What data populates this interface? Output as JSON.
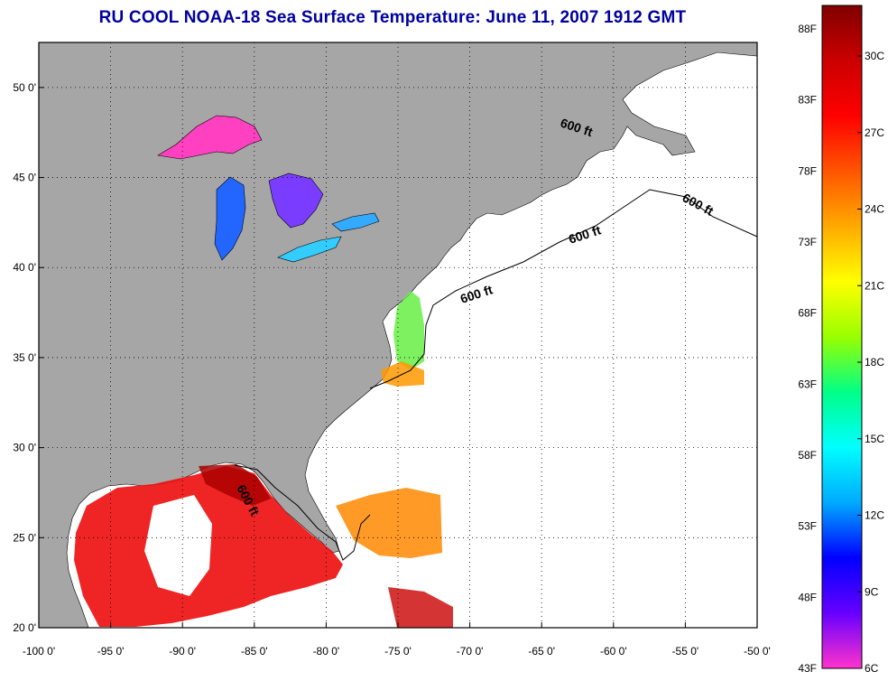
{
  "title": "RU COOL  NOAA-18  Sea Surface Temperature:  June 11, 2007 1912 GMT",
  "map": {
    "lon_range": [
      -100,
      -50
    ],
    "lat_range": [
      20,
      52.5
    ],
    "lat_ticks": [
      {
        "value": 20,
        "label": "20 0'"
      },
      {
        "value": 25,
        "label": "25 0'"
      },
      {
        "value": 30,
        "label": "30 0'"
      },
      {
        "value": 35,
        "label": "35 0'"
      },
      {
        "value": 40,
        "label": "40 0'"
      },
      {
        "value": 45,
        "label": "45 0'"
      },
      {
        "value": 50,
        "label": "50 0'"
      }
    ],
    "lon_ticks": [
      {
        "value": -100,
        "label": "-100 0'"
      },
      {
        "value": -95,
        "label": "-95 0'"
      },
      {
        "value": -90,
        "label": "-90 0'"
      },
      {
        "value": -85,
        "label": "-85 0'"
      },
      {
        "value": -80,
        "label": "-80 0'"
      },
      {
        "value": -75,
        "label": "-75 0'"
      },
      {
        "value": -70,
        "label": "-70 0'"
      },
      {
        "value": -65,
        "label": "-65 0'"
      },
      {
        "value": -60,
        "label": "-60 0'"
      },
      {
        "value": -55,
        "label": "-55 0'"
      },
      {
        "value": -50,
        "label": "-50 0'"
      }
    ],
    "contour_label": "600 ft",
    "land_color": "#a6a6a6",
    "ocean_color": "#ffffff",
    "grid": "dotted"
  },
  "colorbar": {
    "palette": [
      "#ff33cc",
      "#6600ff",
      "#0000ff",
      "#00aaff",
      "#00ffff",
      "#00ff88",
      "#99ff00",
      "#ffff00",
      "#ffaa00",
      "#ff5500",
      "#ff0000",
      "#cc0000",
      "#800000"
    ],
    "fahrenheit_labels": [
      "88F",
      "83F",
      "78F",
      "73F",
      "68F",
      "63F",
      "58F",
      "53F",
      "48F",
      "43F"
    ],
    "celsius_labels": [
      "30C",
      "27C",
      "24C",
      "21C",
      "18C",
      "15C",
      "12C",
      "9C",
      "6C"
    ]
  }
}
